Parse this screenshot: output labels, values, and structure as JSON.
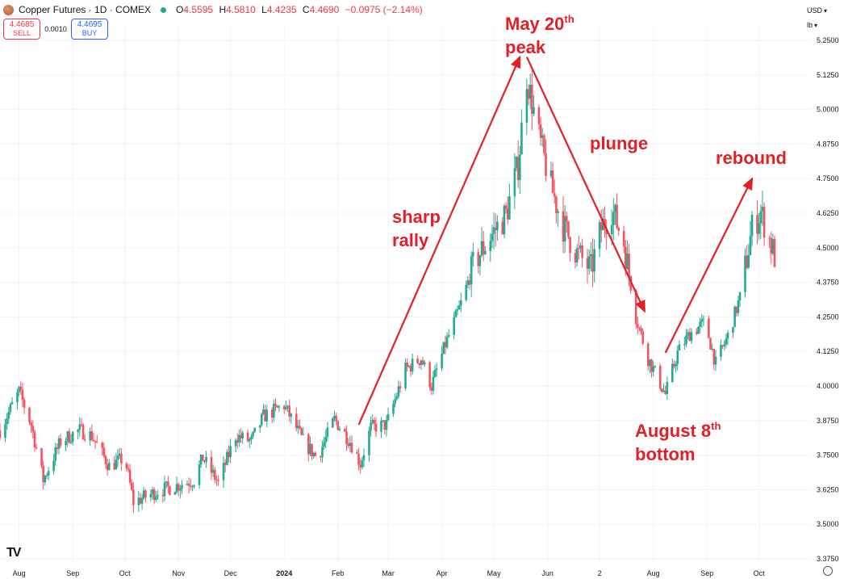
{
  "header": {
    "symbol": "Copper Futures · 1D · COMEX",
    "symbol_icon": "copper-icon",
    "ohlc": [
      {
        "k": "O",
        "v": "4.5595"
      },
      {
        "k": "H",
        "v": "4.5810"
      },
      {
        "k": "L",
        "v": "4.4235"
      },
      {
        "k": "C",
        "v": "4.4690"
      },
      {
        "k": "",
        "v": "−0.0975 (−2.14%)"
      }
    ],
    "sell_price": "4.4685",
    "sell_label": "SELL",
    "spread": "0.0010",
    "buy_price": "4.4695",
    "buy_label": "BUY",
    "currency": "USD",
    "unit": "lb"
  },
  "annotations": {
    "peak_line1": "May 20",
    "peak_sup": "th",
    "peak_line2": "peak",
    "rally_line1": "sharp",
    "rally_line2": "rally",
    "plunge": "plunge",
    "rebound": "rebound",
    "bottom_line1": "August 8",
    "bottom_sup": "th",
    "bottom_line2": "bottom"
  },
  "colors": {
    "up": "#22ab94",
    "down": "#f7525f",
    "annotation": "#e21f26",
    "grid": "#f0f3fa"
  },
  "chart_data": {
    "type": "candlestick",
    "title": "",
    "y_ticks": [
      "5.2500",
      "5.1250",
      "5.0000",
      "4.8750",
      "4.7500",
      "4.6250",
      "4.5000",
      "4.3750",
      "4.2500",
      "4.1250",
      "4.0000",
      "3.8750",
      "3.7500",
      "3.6250",
      "3.5000",
      "3.3750"
    ],
    "x_ticks": [
      "Aug",
      "Sep",
      "Oct",
      "Nov",
      "Dec",
      "2024",
      "Feb",
      "Mar",
      "Apr",
      "May",
      "Jun",
      "2",
      "Aug",
      "Sep",
      "Oct"
    ],
    "ylim": [
      3.35,
      5.3
    ],
    "close_path": [
      [
        "2023-07-21",
        3.84
      ],
      [
        "2023-08-01",
        3.98
      ],
      [
        "2023-08-08",
        3.86
      ],
      [
        "2023-08-15",
        3.66
      ],
      [
        "2023-08-25",
        3.8
      ],
      [
        "2023-09-05",
        3.84
      ],
      [
        "2023-09-12",
        3.82
      ],
      [
        "2023-09-22",
        3.71
      ],
      [
        "2023-10-01",
        3.74
      ],
      [
        "2023-10-06",
        3.58
      ],
      [
        "2023-10-20",
        3.62
      ],
      [
        "2023-10-31",
        3.64
      ],
      [
        "2023-11-10",
        3.66
      ],
      [
        "2023-11-15",
        3.74
      ],
      [
        "2023-11-24",
        3.65
      ],
      [
        "2023-12-04",
        3.82
      ],
      [
        "2023-12-13",
        3.8
      ],
      [
        "2023-12-20",
        3.89
      ],
      [
        "2024-01-01",
        3.93
      ],
      [
        "2024-01-12",
        3.8
      ],
      [
        "2024-01-20",
        3.74
      ],
      [
        "2024-01-30",
        3.88
      ],
      [
        "2024-02-08",
        3.8
      ],
      [
        "2024-02-14",
        3.72
      ],
      [
        "2024-02-20",
        3.85
      ],
      [
        "2024-02-29",
        3.86
      ],
      [
        "2024-03-11",
        4.06
      ],
      [
        "2024-03-20",
        4.1
      ],
      [
        "2024-03-26",
        4.0
      ],
      [
        "2024-04-03",
        4.15
      ],
      [
        "2024-04-11",
        4.28
      ],
      [
        "2024-04-20",
        4.45
      ],
      [
        "2024-04-30",
        4.55
      ],
      [
        "2024-05-08",
        4.62
      ],
      [
        "2024-05-15",
        4.8
      ],
      [
        "2024-05-20",
        5.12
      ],
      [
        "2024-05-27",
        4.9
      ],
      [
        "2024-06-03",
        4.72
      ],
      [
        "2024-06-10",
        4.58
      ],
      [
        "2024-06-18",
        4.48
      ],
      [
        "2024-06-26",
        4.42
      ],
      [
        "2024-07-02",
        4.57
      ],
      [
        "2024-07-08",
        4.64
      ],
      [
        "2024-07-15",
        4.52
      ],
      [
        "2024-07-22",
        4.25
      ],
      [
        "2024-07-29",
        4.1
      ],
      [
        "2024-08-08",
        3.97
      ],
      [
        "2024-08-15",
        4.12
      ],
      [
        "2024-08-22",
        4.19
      ],
      [
        "2024-08-31",
        4.23
      ],
      [
        "2024-09-06",
        4.08
      ],
      [
        "2024-09-13",
        4.18
      ],
      [
        "2024-09-20",
        4.32
      ],
      [
        "2024-09-27",
        4.57
      ],
      [
        "2024-10-02",
        4.63
      ],
      [
        "2024-10-10",
        4.47
      ]
    ],
    "annotated_points": [
      {
        "label": "May 20th peak",
        "date": "2024-05-20",
        "value": 5.19
      },
      {
        "label": "August 8th bottom",
        "date": "2024-08-08",
        "value": 3.94
      }
    ],
    "grid": true,
    "y_axis_position": "right"
  }
}
